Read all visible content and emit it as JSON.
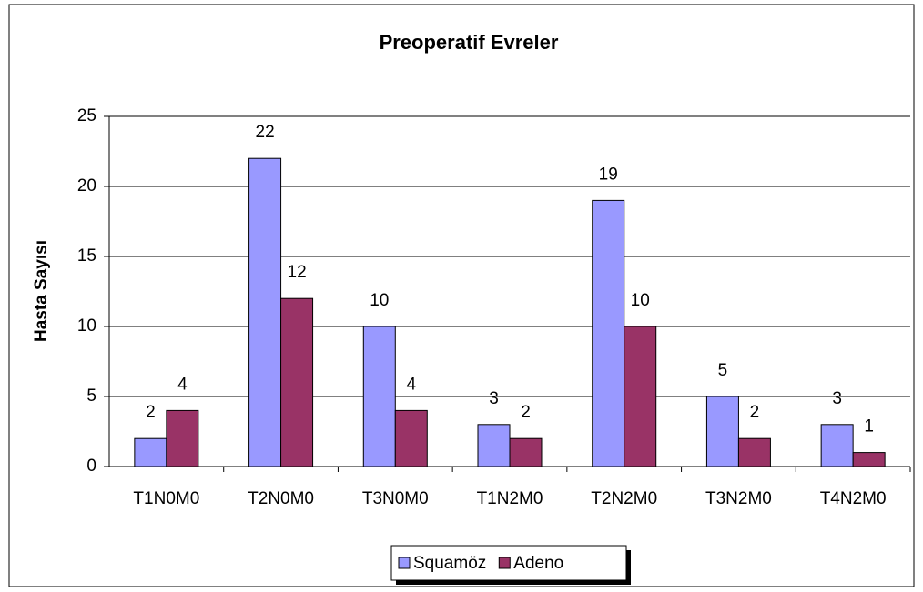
{
  "chart_data": {
    "type": "bar",
    "title": "Preoperatif  Evreler",
    "y_label": "Hasta Sayısı",
    "categories": [
      "T1N0M0",
      "T2N0M0",
      "T3N0M0",
      "T1N2M0",
      "T2N2M0",
      "T3N2M0",
      "T4N2M0"
    ],
    "series": [
      {
        "name": "Squamöz",
        "color": "#9999ff",
        "values": [
          2,
          22,
          10,
          3,
          19,
          5,
          3
        ]
      },
      {
        "name": "Adeno",
        "color": "#993366",
        "values": [
          4,
          12,
          4,
          2,
          10,
          2,
          1
        ]
      }
    ],
    "ylim": [
      0,
      25
    ],
    "yticks": [
      0,
      5,
      10,
      15,
      20,
      25
    ],
    "grid": true,
    "legend": "bottom"
  }
}
